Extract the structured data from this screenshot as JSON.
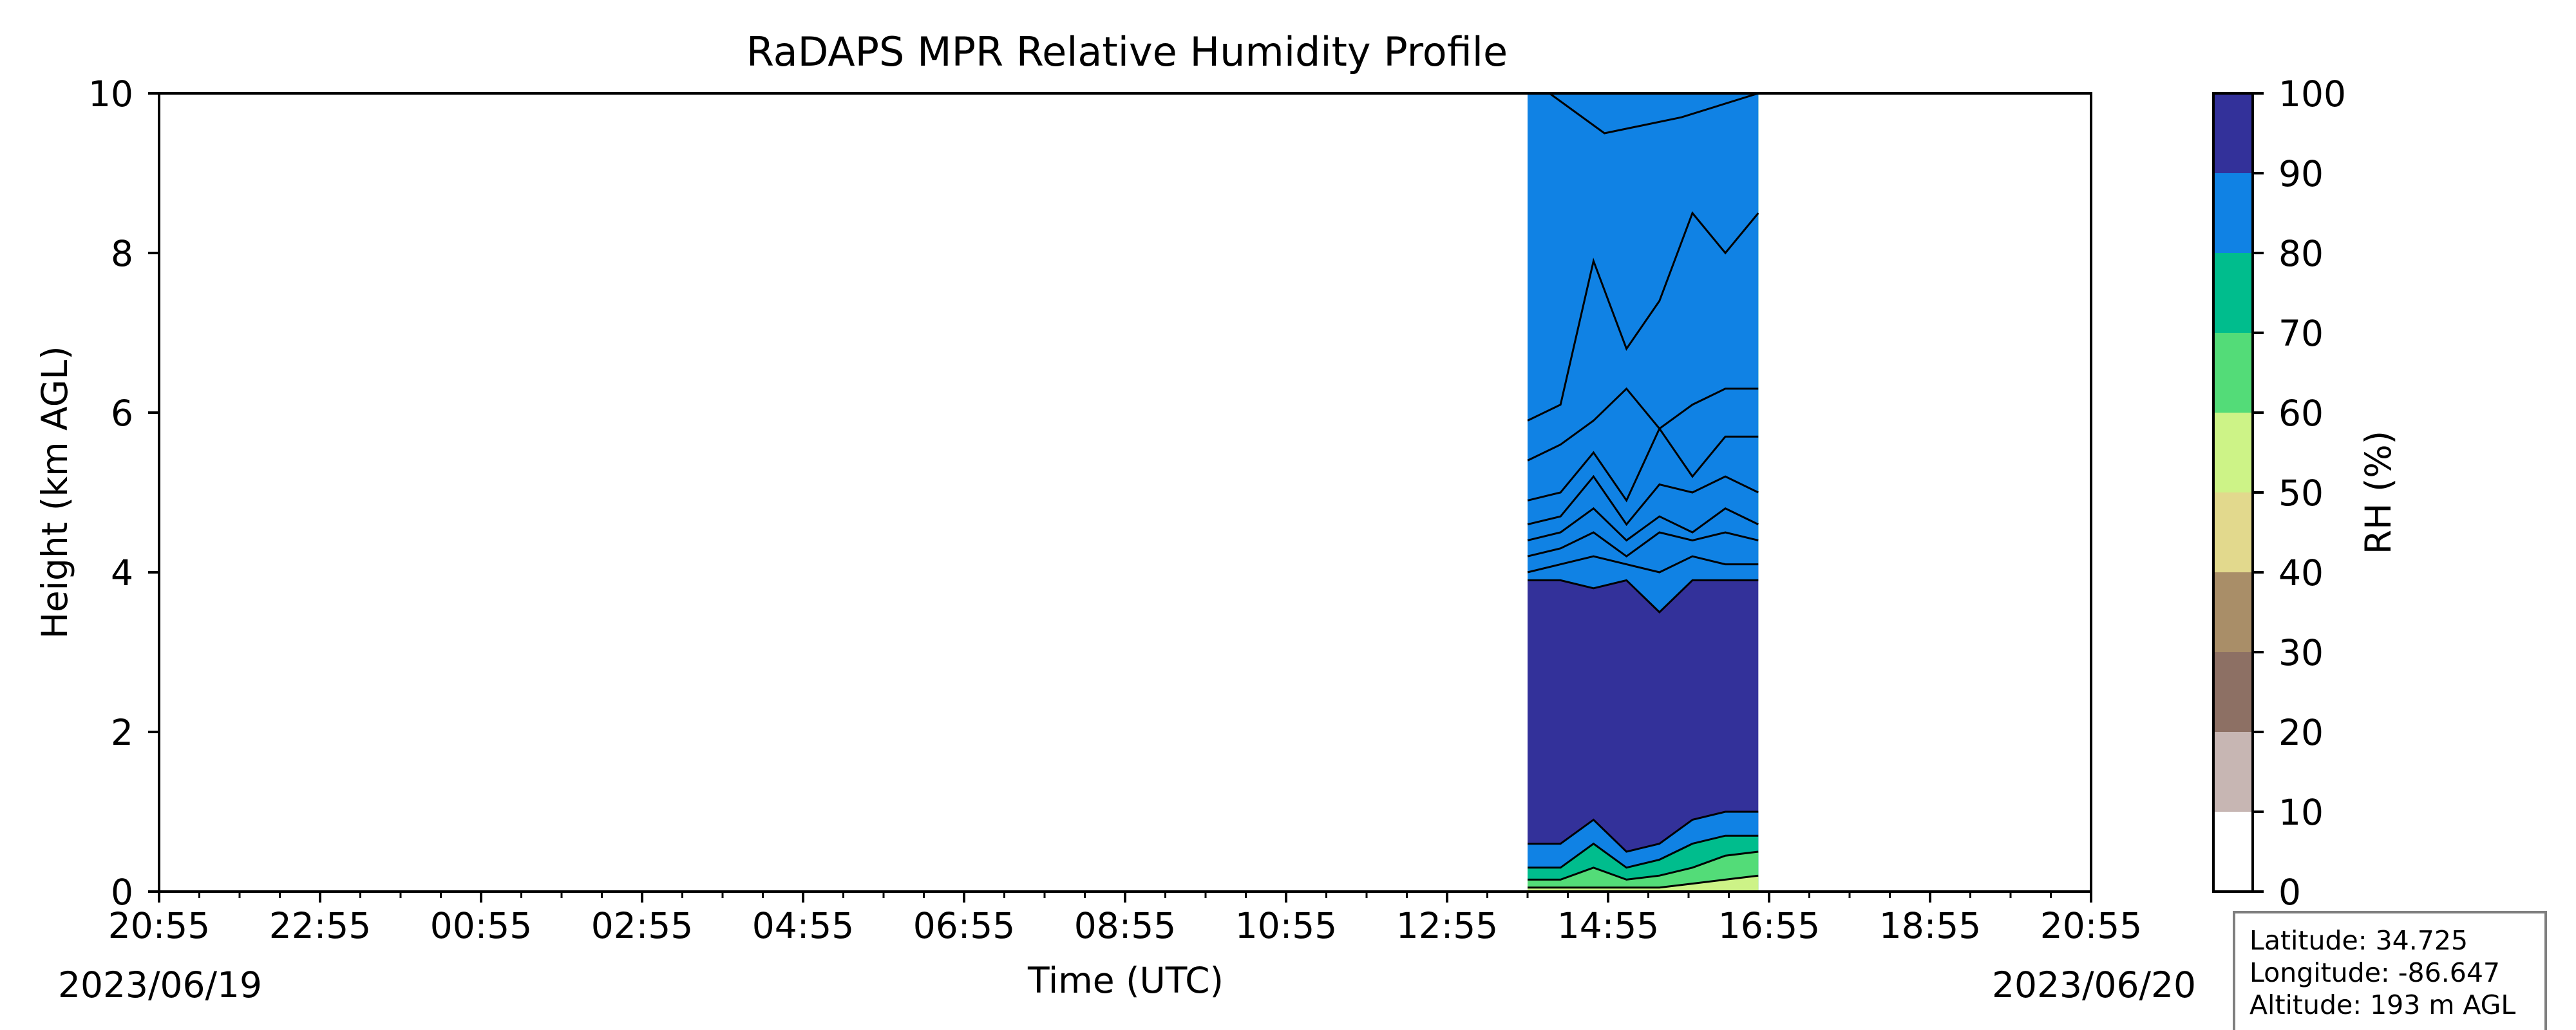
{
  "chart_data": {
    "type": "filled contour (time-height)",
    "title": "RaDAPS MPR Relative Humidity Profile",
    "xlabel": "Time (UTC)",
    "ylabel": "Height (km AGL)",
    "ylim": [
      0,
      10
    ],
    "y_ticks": [
      "0",
      "2",
      "4",
      "6",
      "8",
      "10"
    ],
    "x_ticks": [
      "20:55",
      "22:55",
      "00:55",
      "02:55",
      "04:55",
      "06:55",
      "08:55",
      "10:55",
      "12:55",
      "14:55",
      "16:55",
      "18:55",
      "20:55"
    ],
    "date_start": "2023/06/19",
    "date_end": "2023/06/20",
    "data_window": {
      "start": "2023-06-19T13:55",
      "end": "2023-06-19T16:47"
    },
    "colorbar": {
      "label": "RH (%)",
      "ticks": [
        "0",
        "10",
        "20",
        "30",
        "40",
        "50",
        "60",
        "70",
        "80",
        "90",
        "100"
      ],
      "levels": [
        0,
        10,
        20,
        30,
        40,
        50,
        60,
        70,
        80,
        90,
        100
      ],
      "colors": [
        "#ffffff",
        "#c7b6b3",
        "#8d7064",
        "#a98e68",
        "#e2d98d",
        "#cdf387",
        "#53dc78",
        "#00bd8d",
        "#1082e4",
        "#33319a"
      ]
    },
    "contour_lines": [
      {
        "level": 10,
        "height_km": [
          10.2,
          9.5,
          9.7,
          10.0
        ]
      },
      {
        "level": 20,
        "height_km": [
          5.9,
          6.1,
          7.9,
          6.8,
          7.4,
          8.5,
          8.0,
          8.5
        ]
      },
      {
        "level": 30,
        "height_km": [
          5.4,
          5.6,
          5.9,
          6.3,
          5.8,
          6.1,
          6.3,
          6.3
        ]
      },
      {
        "level": 40,
        "height_km": [
          4.9,
          5.0,
          5.5,
          4.9,
          5.8,
          5.2,
          5.7,
          5.7
        ]
      },
      {
        "level": 50,
        "height_km": [
          4.6,
          4.7,
          5.2,
          4.6,
          5.1,
          5.0,
          5.2,
          5.0
        ]
      },
      {
        "level": 60,
        "height_km": [
          4.4,
          4.5,
          4.8,
          4.4,
          4.7,
          4.5,
          4.8,
          4.6
        ]
      },
      {
        "level": 70,
        "height_km": [
          4.2,
          4.3,
          4.5,
          4.2,
          4.5,
          4.4,
          4.5,
          4.4
        ]
      },
      {
        "level": 80,
        "height_km": [
          4.0,
          4.1,
          4.2,
          4.1,
          4.0,
          4.2,
          4.1,
          4.1
        ]
      },
      {
        "level": 90,
        "height_km": [
          3.9,
          3.9,
          3.8,
          3.9,
          3.5,
          3.9,
          3.9,
          3.9
        ]
      },
      {
        "level": 91,
        "height_km": [
          0.6,
          0.6,
          0.9,
          0.5,
          0.6,
          0.9,
          1.0,
          1.0
        ]
      },
      {
        "level": 81,
        "height_km": [
          0.3,
          0.3,
          0.6,
          0.3,
          0.4,
          0.6,
          0.7,
          0.7
        ]
      },
      {
        "level": 71,
        "height_km": [
          0.15,
          0.15,
          0.3,
          0.15,
          0.2,
          0.3,
          0.45,
          0.5
        ]
      },
      {
        "level": 61,
        "height_km": [
          0.05,
          0.05,
          0.05,
          0.05,
          0.05,
          0.1,
          0.15,
          0.2
        ]
      }
    ],
    "info_box": {
      "latitude": "Latitude: 34.725",
      "longitude": "Longitude: -86.647",
      "altitude": "Altitude: 193 m AGL"
    }
  }
}
